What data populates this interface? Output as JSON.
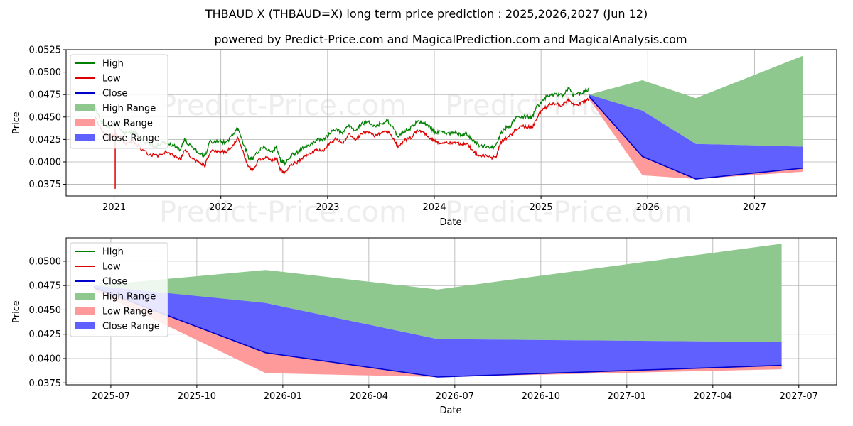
{
  "title": "THBAUD X (THBAUD=X) long term price prediction : 2025,2026,2027 (Jun 12)",
  "subtitle": "powered by Predict-Price.com and MagicalPrediction.com and MagicalAnalysis.com",
  "watermark": "Predict-Price.com",
  "colors": {
    "high": "#008000",
    "low": "#dd0000",
    "close": "#0000cc",
    "high_range": "#8fc88f",
    "low_range": "#ff9a9a",
    "close_range": "#6060ff"
  },
  "legend": [
    {
      "key": "high",
      "label": "High",
      "kind": "line"
    },
    {
      "key": "low",
      "label": "Low",
      "kind": "line"
    },
    {
      "key": "close",
      "label": "Close",
      "kind": "line"
    },
    {
      "key": "high_range",
      "label": "High Range",
      "kind": "patch"
    },
    {
      "key": "low_range",
      "label": "Low Range",
      "kind": "patch"
    },
    {
      "key": "close_range",
      "label": "Close Range",
      "kind": "patch"
    }
  ],
  "chart_data": [
    {
      "type": "line",
      "panel": "top",
      "xlabel": "Date",
      "ylabel": "Price",
      "xlim": [
        2020.55,
        2027.77
      ],
      "ylim": [
        0.0362,
        0.0525
      ],
      "xticks": [
        2021,
        2022,
        2023,
        2024,
        2025,
        2026,
        2027
      ],
      "xtick_labels": [
        "2021",
        "2022",
        "2023",
        "2024",
        "2025",
        "2026",
        "2027"
      ],
      "yticks": [
        0.0375,
        0.04,
        0.0425,
        0.045,
        0.0475,
        0.05,
        0.0525
      ],
      "ytick_labels": [
        "0.0375",
        "0.0400",
        "0.0425",
        "0.0450",
        "0.0475",
        "0.0500",
        "0.0525"
      ],
      "grid": true,
      "legend_position": "top-left",
      "history_close": [
        [
          2020.82,
          0.0456
        ],
        [
          2020.88,
          0.044
        ],
        [
          2020.95,
          0.0432
        ],
        [
          2021.02,
          0.0437
        ],
        [
          2021.1,
          0.0426
        ],
        [
          2021.18,
          0.0428
        ],
        [
          2021.25,
          0.042
        ],
        [
          2021.32,
          0.0414
        ],
        [
          2021.4,
          0.0412
        ],
        [
          2021.48,
          0.0416
        ],
        [
          2021.55,
          0.0413
        ],
        [
          2021.62,
          0.0408
        ],
        [
          2021.66,
          0.0419
        ],
        [
          2021.72,
          0.0411
        ],
        [
          2021.8,
          0.0404
        ],
        [
          2021.85,
          0.0401
        ],
        [
          2021.9,
          0.0417
        ],
        [
          2021.98,
          0.0417
        ],
        [
          2022.05,
          0.0416
        ],
        [
          2022.12,
          0.0425
        ],
        [
          2022.16,
          0.0432
        ],
        [
          2022.22,
          0.0412
        ],
        [
          2022.26,
          0.0399
        ],
        [
          2022.3,
          0.0397
        ],
        [
          2022.36,
          0.0408
        ],
        [
          2022.42,
          0.041
        ],
        [
          2022.48,
          0.0406
        ],
        [
          2022.52,
          0.041
        ],
        [
          2022.56,
          0.0396
        ],
        [
          2022.6,
          0.0393
        ],
        [
          2022.66,
          0.0402
        ],
        [
          2022.72,
          0.0405
        ],
        [
          2022.78,
          0.0411
        ],
        [
          2022.84,
          0.0414
        ],
        [
          2022.9,
          0.0419
        ],
        [
          2022.96,
          0.0418
        ],
        [
          2023.02,
          0.0426
        ],
        [
          2023.08,
          0.0431
        ],
        [
          2023.14,
          0.0426
        ],
        [
          2023.2,
          0.0436
        ],
        [
          2023.26,
          0.0429
        ],
        [
          2023.32,
          0.0437
        ],
        [
          2023.38,
          0.0439
        ],
        [
          2023.44,
          0.0434
        ],
        [
          2023.5,
          0.0437
        ],
        [
          2023.56,
          0.044
        ],
        [
          2023.62,
          0.0431
        ],
        [
          2023.66,
          0.0422
        ],
        [
          2023.72,
          0.0429
        ],
        [
          2023.78,
          0.0432
        ],
        [
          2023.84,
          0.044
        ],
        [
          2023.9,
          0.0438
        ],
        [
          2023.96,
          0.0432
        ],
        [
          2024.02,
          0.0427
        ],
        [
          2024.08,
          0.0427
        ],
        [
          2024.14,
          0.0426
        ],
        [
          2024.2,
          0.0427
        ],
        [
          2024.26,
          0.0424
        ],
        [
          2024.3,
          0.0426
        ],
        [
          2024.36,
          0.0418
        ],
        [
          2024.42,
          0.0412
        ],
        [
          2024.48,
          0.0412
        ],
        [
          2024.54,
          0.041
        ],
        [
          2024.58,
          0.0412
        ],
        [
          2024.62,
          0.0426
        ],
        [
          2024.66,
          0.0431
        ],
        [
          2024.72,
          0.0435
        ],
        [
          2024.76,
          0.0442
        ],
        [
          2024.82,
          0.0445
        ],
        [
          2024.88,
          0.0444
        ],
        [
          2024.92,
          0.0444
        ],
        [
          2024.96,
          0.0455
        ],
        [
          2025.02,
          0.0464
        ],
        [
          2025.08,
          0.0469
        ],
        [
          2025.14,
          0.047
        ],
        [
          2025.2,
          0.0468
        ],
        [
          2025.26,
          0.0476
        ],
        [
          2025.3,
          0.0469
        ],
        [
          2025.36,
          0.047
        ],
        [
          2025.41,
          0.0473
        ],
        [
          2025.45,
          0.0475
        ]
      ],
      "forecast": {
        "x": [
          2025.45,
          2025.95,
          2026.45,
          2027.45
        ],
        "high_range_top": [
          0.0475,
          0.0491,
          0.0471,
          0.0518
        ],
        "high_range_bottom": [
          0.047,
          0.0457,
          0.042,
          0.0417
        ],
        "close_range_top": [
          0.0475,
          0.0457,
          0.042,
          0.0417
        ],
        "close": [
          0.0473,
          0.0406,
          0.0381,
          0.0393
        ],
        "low_range_bottom": [
          0.047,
          0.0385,
          0.0381,
          0.0389
        ]
      }
    },
    {
      "type": "area",
      "panel": "bottom",
      "xlabel": "Date",
      "ylabel": "Price",
      "xlim": [
        2025.37,
        2027.61
      ],
      "ylim": [
        0.0373,
        0.0524
      ],
      "xticks": [
        2025.5,
        2025.75,
        2026.0,
        2026.25,
        2026.5,
        2026.75,
        2027.0,
        2027.25,
        2027.5
      ],
      "xtick_labels": [
        "2025-07",
        "2025-10",
        "2026-01",
        "2026-04",
        "2026-07",
        "2026-10",
        "2027-01",
        "2027-04",
        "2027-07"
      ],
      "yticks": [
        0.0375,
        0.04,
        0.0425,
        0.045,
        0.0475,
        0.05
      ],
      "ytick_labels": [
        "0.0375",
        "0.0400",
        "0.0425",
        "0.0450",
        "0.0475",
        "0.0500"
      ],
      "grid": true,
      "legend_position": "top-left",
      "forecast": {
        "x": [
          2025.45,
          2025.95,
          2026.45,
          2027.45
        ],
        "high_range_top": [
          0.0475,
          0.0491,
          0.0471,
          0.0518
        ],
        "high_range_bottom": [
          0.047,
          0.0457,
          0.042,
          0.0417
        ],
        "close_range_top": [
          0.0475,
          0.0457,
          0.042,
          0.0417
        ],
        "close": [
          0.0473,
          0.0406,
          0.0381,
          0.0393
        ],
        "low_range_bottom": [
          0.047,
          0.0385,
          0.0381,
          0.0389
        ]
      }
    }
  ]
}
